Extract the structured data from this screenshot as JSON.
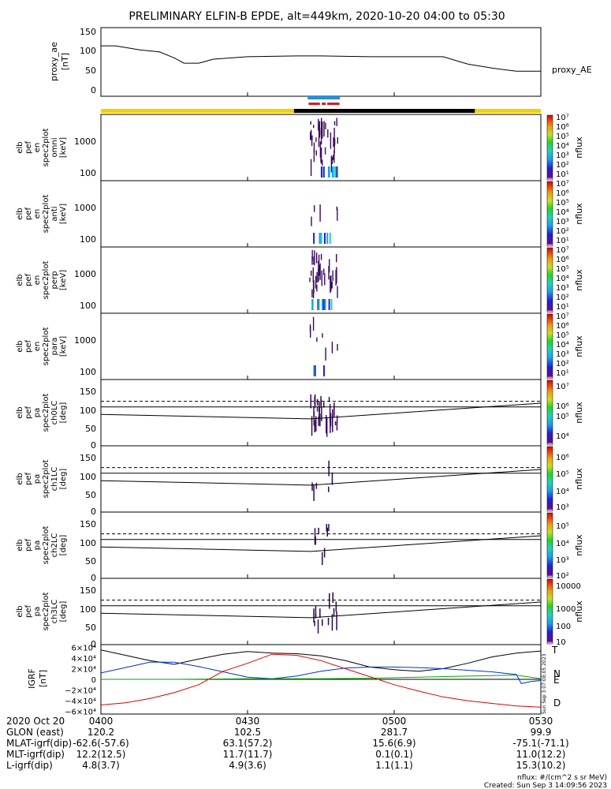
{
  "title": "PRELIMINARY ELFIN-B EPDE, alt=449km, 2020-10-20 04:00 to 05:30",
  "colors": {
    "yellow_bar": "#f5d000",
    "black_bar": "#000000",
    "blue_bar": "#1e90e6",
    "red_bar": "#e01818",
    "geo_n": "#0033cc",
    "geo_e": "#00aa00",
    "geo_d": "#dd0000"
  },
  "time_axis": {
    "ticks": [
      "0400",
      "0430",
      "0500",
      "0530"
    ],
    "minutes": [
      0,
      30,
      60,
      90
    ],
    "start_label": "2020 Oct 20"
  },
  "panels": {
    "ae": {
      "ylabel": [
        "proxy_ae",
        "[nT]"
      ],
      "yticks": [
        "150",
        "100",
        "50",
        "0"
      ],
      "ytick_vals": [
        150,
        100,
        50,
        0
      ],
      "ylim": [
        0,
        150
      ],
      "legend": "proxy_AE"
    },
    "omni": {
      "ylabel": [
        "elb",
        "pef",
        "en",
        "spec2plot",
        "omni",
        "[keV]"
      ],
      "yticks": [
        "1000",
        "100"
      ],
      "zlabel": "nflux",
      "zticks": [
        "10⁷",
        "10⁶",
        "10⁵",
        "10⁴",
        "10³",
        "10²",
        "10¹"
      ]
    },
    "anti": {
      "ylabel": [
        "elb",
        "pef",
        "en",
        "spec2plot",
        "anti",
        "[keV]"
      ],
      "yticks": [
        "1000",
        "100"
      ],
      "zlabel": "nflux",
      "zticks": [
        "10⁷",
        "10⁶",
        "10⁵",
        "10⁴",
        "10³",
        "10²",
        "10¹"
      ]
    },
    "perp": {
      "ylabel": [
        "elb",
        "pef",
        "en",
        "spec2plot",
        "perp",
        "[keV]"
      ],
      "yticks": [
        "1000",
        "100"
      ],
      "zlabel": "nflux",
      "zticks": [
        "10⁷",
        "10⁶",
        "10⁵",
        "10⁴",
        "10³",
        "10²",
        "10¹"
      ]
    },
    "para": {
      "ylabel": [
        "elb",
        "pef",
        "en",
        "spec2plot",
        "para",
        "[keV]"
      ],
      "yticks": [
        "1000",
        "100"
      ],
      "zlabel": "nflux",
      "zticks": [
        "10⁷",
        "10⁶",
        "10⁵",
        "10⁴",
        "10³",
        "10²",
        "10¹"
      ]
    },
    "ch0": {
      "ylabel": [
        "elb",
        "pef",
        "pa",
        "spec2plot",
        "ch0LC",
        "[deg]"
      ],
      "yticks": [
        "150",
        "100",
        "50",
        "0"
      ],
      "zlabel": "nflux",
      "zticks": [
        "10⁷",
        "10⁶",
        "10⁵",
        "10⁴"
      ]
    },
    "ch1": {
      "ylabel": [
        "elb",
        "pef",
        "pa",
        "spec2plot",
        "ch1LC",
        "[deg]"
      ],
      "yticks": [
        "150",
        "100",
        "50",
        "0"
      ],
      "zlabel": "nflux",
      "zticks": [
        "10⁶",
        "10⁵",
        "10⁴",
        "10³"
      ]
    },
    "ch2": {
      "ylabel": [
        "elb",
        "pef",
        "pa",
        "spec2plot",
        "ch2LC",
        "[deg]"
      ],
      "yticks": [
        "150",
        "100",
        "50",
        "0"
      ],
      "zlabel": "nflux",
      "zticks": [
        "10⁵",
        "10⁴",
        "10³",
        "10²"
      ]
    },
    "ch3": {
      "ylabel": [
        "elb",
        "pef",
        "pa",
        "spec2plot",
        "ch3LC",
        "[deg]"
      ],
      "yticks": [
        "150",
        "100",
        "50",
        "0"
      ],
      "zlabel": "nflux",
      "zticks": [
        "10000",
        "1000",
        "100",
        "10"
      ]
    },
    "igrf": {
      "ylabel": [
        "IGRF",
        "[nT]"
      ],
      "yticks": [
        "6×10⁴",
        "4×10⁴",
        "2×10⁴",
        "0",
        "−2×10⁴",
        "−4×10⁴",
        "−6×10⁴"
      ],
      "ytick_vals": [
        60000,
        40000,
        20000,
        0,
        -20000,
        -40000,
        -60000
      ],
      "ylim": [
        -65000,
        65000
      ],
      "legend": [
        "T",
        "N",
        "E",
        "D"
      ],
      "side_text": "Sun Sep  3 07:08:05 2023"
    }
  },
  "chart_data": {
    "type": "line",
    "x_unit": "minutes after 2020-10-20 04:00",
    "xlim": [
      0,
      90
    ],
    "ae": {
      "name": "proxy_AE",
      "x": [
        0,
        3,
        8,
        12,
        15,
        17,
        20,
        23,
        30,
        40,
        45,
        55,
        60,
        65,
        70,
        75,
        80,
        85,
        90
      ],
      "y": [
        115,
        115,
        105,
        100,
        85,
        72,
        72,
        82,
        88,
        90,
        90,
        88,
        88,
        88,
        88,
        70,
        60,
        52,
        52
      ]
    },
    "lc_lines": {
      "x": [
        0,
        90
      ],
      "solid_upper": 100,
      "dashed": 115,
      "lower_x": [
        0,
        43,
        90
      ],
      "lower_y": [
        80,
        68,
        110
      ]
    },
    "igrf": {
      "T": {
        "x": [
          0,
          5,
          10,
          15,
          20,
          25,
          30,
          35,
          40,
          45,
          50,
          55,
          60,
          65,
          70,
          75,
          80,
          85,
          90
        ],
        "y": [
          55000,
          45000,
          35000,
          28000,
          38000,
          47000,
          52000,
          49000,
          48000,
          44000,
          35000,
          23000,
          18000,
          15000,
          20000,
          30000,
          42000,
          49000,
          53000
        ]
      },
      "N": {
        "x": [
          0,
          5,
          10,
          15,
          20,
          25,
          30,
          35,
          40,
          45,
          50,
          55,
          60,
          65,
          70,
          75,
          80,
          85,
          86,
          88,
          90
        ],
        "y": [
          12000,
          22000,
          32000,
          32000,
          24000,
          14000,
          4000,
          1000,
          6000,
          15000,
          21000,
          23000,
          23000,
          22000,
          20000,
          17000,
          14000,
          9000,
          -8000,
          -4000,
          -2000
        ]
      },
      "E": {
        "x": [
          0,
          15,
          30,
          45,
          55,
          65,
          75,
          85,
          90
        ],
        "y": [
          0,
          0,
          1000,
          1000,
          2000,
          4000,
          6000,
          8000,
          1000
        ]
      },
      "D": {
        "x": [
          0,
          5,
          10,
          15,
          20,
          25,
          30,
          35,
          40,
          45,
          50,
          55,
          60,
          65,
          70,
          75,
          80,
          85,
          90
        ],
        "y": [
          -48000,
          -44000,
          -36000,
          -25000,
          -10000,
          15000,
          30000,
          47000,
          45000,
          35000,
          20000,
          5000,
          -10000,
          -22000,
          -33000,
          -40000,
          -45000,
          -50000,
          -52000
        ]
      }
    },
    "bars": {
      "yellow_ranges": [
        [
          0,
          39.5
        ],
        [
          76.5,
          90
        ]
      ],
      "black_range": [
        39.5,
        76.5
      ],
      "blue_range": [
        42.3,
        48.9
      ],
      "red_ranges": [
        [
          42.5,
          44.8
        ],
        [
          45.2,
          46.0
        ],
        [
          46.3,
          48.8
        ]
      ]
    }
  },
  "ephemeris": {
    "rows": [
      {
        "label": "2020 Oct 20",
        "values": [
          "0400",
          "0430",
          "0500",
          "0530"
        ]
      },
      {
        "label": "GLON (east)",
        "values": [
          "120.2",
          "102.5",
          "281.7",
          "99.9"
        ]
      },
      {
        "label": "MLAT-igrf(dip)",
        "values": [
          "-62.6(-57.6)",
          "63.1(57.2)",
          "15.6(6.9)",
          "-75.1(-71.1)"
        ]
      },
      {
        "label": "MLT-igrf(dip)",
        "values": [
          "12.2(12.5)",
          "11.7(11.7)",
          "0.1(0.1)",
          "11.0(12.2)"
        ]
      },
      {
        "label": "L-igrf(dip)",
        "values": [
          "4.8(3.7)",
          "4.9(3.6)",
          "1.1(1.1)",
          "15.3(10.2)"
        ]
      }
    ]
  },
  "footer": {
    "units": "nflux: #/(cm^2 s sr MeV)",
    "created": "Created: Sun Sep  3 14:09:56 2023"
  }
}
